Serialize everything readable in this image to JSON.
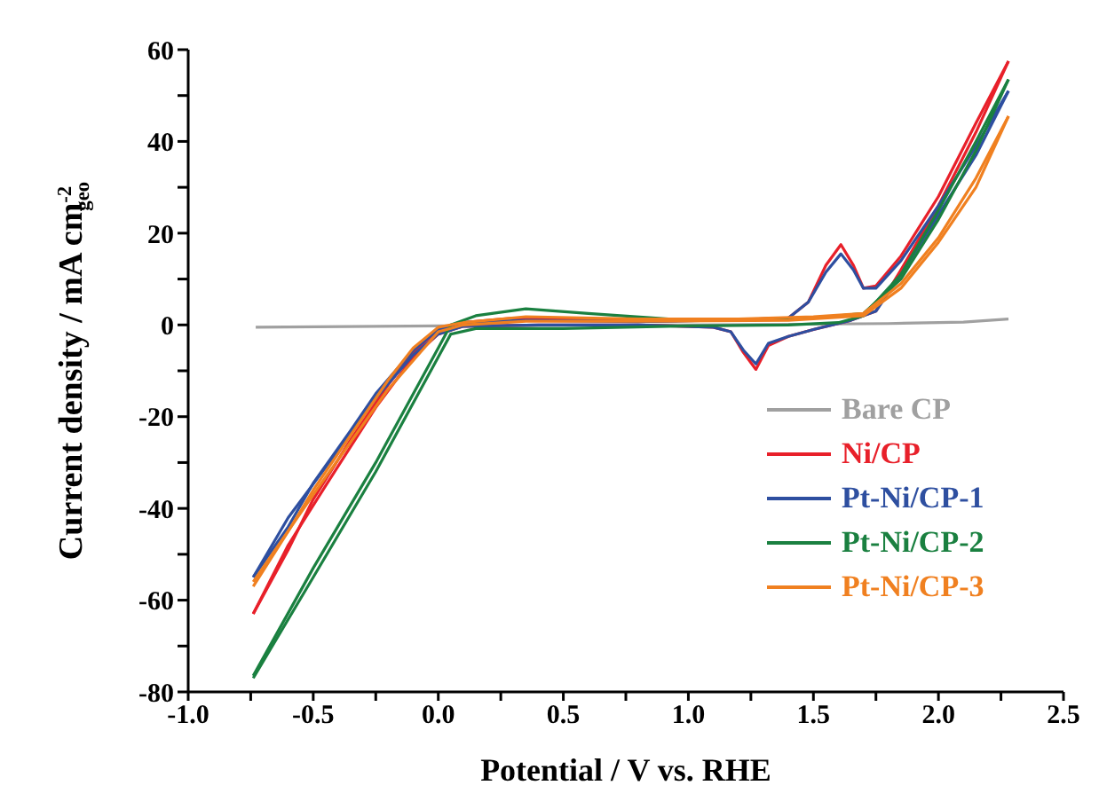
{
  "chart_data": {
    "type": "line",
    "xlabel": "Potential / V vs. RHE",
    "ylabel": "Current density / mA cm$^{-2}$$_{geo}$",
    "xlim": [
      -1.0,
      2.5
    ],
    "xticks": [
      {
        "value": -1.0,
        "label": "-1.0"
      },
      {
        "value": -0.75,
        "label": null
      },
      {
        "value": -0.5,
        "label": "-0.5"
      },
      {
        "value": -0.25,
        "label": null
      },
      {
        "value": 0.0,
        "label": "0.0"
      },
      {
        "value": 0.25,
        "label": null
      },
      {
        "value": 0.5,
        "label": "0.5"
      },
      {
        "value": 0.75,
        "label": null
      },
      {
        "value": 1.0,
        "label": "1.0"
      },
      {
        "value": 1.25,
        "label": null
      },
      {
        "value": 1.5,
        "label": "1.5"
      },
      {
        "value": 1.75,
        "label": null
      },
      {
        "value": 2.0,
        "label": "2.0"
      },
      {
        "value": 2.25,
        "label": null
      },
      {
        "value": 2.5,
        "label": "2.5"
      }
    ],
    "ylim": [
      -80,
      60
    ],
    "yticks": [
      -80,
      {
        "value": -70,
        "label": null
      },
      -60,
      {
        "value": -50,
        "label": null
      },
      -40,
      {
        "value": -30,
        "label": null
      },
      -20,
      {
        "value": -10,
        "label": null
      },
      0,
      {
        "value": 10,
        "label": null
      },
      20,
      {
        "value": 30,
        "label": null
      },
      40,
      {
        "value": 50,
        "label": null
      },
      60
    ],
    "legend": "bottom right",
    "series": [
      {
        "name": "Bare CP",
        "color": "#a0a0a0",
        "x": [
          -0.73,
          0,
          1,
          1.8,
          2.1,
          2.28
        ],
        "values": [
          -0.5,
          -0.2,
          0,
          0.3,
          0.6,
          1.3
        ]
      },
      {
        "name": "Ni/CP",
        "color": "#e8202a",
        "x": [
          -0.74,
          -0.6,
          -0.5,
          -0.35,
          -0.2,
          -0.1,
          0,
          0.1,
          0.3,
          0.5,
          0.8,
          1.1,
          1.4,
          1.48,
          1.55,
          1.61,
          1.66,
          1.7,
          1.75,
          1.85,
          2.0,
          2.15,
          2.28
        ],
        "values": [
          -63,
          -49,
          -38,
          -25,
          -13,
          -6,
          -1,
          0.5,
          1.5,
          1.2,
          0.8,
          1,
          1.5,
          5,
          13,
          17.5,
          13,
          8,
          8.5,
          15,
          28,
          44,
          57.5
        ]
      },
      {
        "color": "#e8202a",
        "x": [
          2.28,
          2.15,
          2.0,
          1.85,
          1.75,
          1.65,
          1.5,
          1.4,
          1.32,
          1.27,
          1.22,
          1.17,
          1.1,
          0.8,
          0.4,
          0.1,
          0,
          -0.1,
          -0.25,
          -0.45,
          -0.6,
          -0.74
        ],
        "values": [
          57.5,
          42,
          26,
          12,
          3,
          1,
          -1,
          -2.5,
          -4.5,
          -9.7,
          -6,
          -1.5,
          -0.5,
          0,
          0,
          -0.3,
          -2,
          -7,
          -18,
          -35,
          -48,
          -63
        ]
      },
      {
        "name": "Pt-Ni/CP-1",
        "color": "#2e4fa0",
        "x": [
          -0.74,
          -0.6,
          -0.5,
          -0.35,
          -0.25,
          -0.1,
          0,
          0.1,
          0.35,
          0.8,
          1.1,
          1.4,
          1.48,
          1.55,
          1.61,
          1.66,
          1.7,
          1.75,
          1.85,
          2.0,
          2.15,
          2.28
        ],
        "values": [
          -55,
          -44,
          -34.5,
          -23,
          -15,
          -5.5,
          -1,
          0.5,
          1,
          0.7,
          1,
          1.5,
          5,
          11.5,
          15.5,
          12,
          8,
          8,
          14,
          26,
          39,
          51
        ]
      },
      {
        "color": "#2e4fa0",
        "x": [
          2.28,
          2.15,
          2.0,
          1.85,
          1.75,
          1.65,
          1.5,
          1.4,
          1.32,
          1.27,
          1.22,
          1.17,
          1.1,
          0.8,
          0.4,
          0.1,
          0,
          -0.1,
          -0.25,
          -0.45,
          -0.6,
          -0.74
        ],
        "values": [
          51,
          37,
          24,
          11,
          3,
          1,
          -1,
          -2.5,
          -4,
          -8.5,
          -5.5,
          -1.5,
          -0.5,
          0,
          0,
          -0.3,
          -2,
          -6.5,
          -16,
          -31,
          -42,
          -55
        ]
      },
      {
        "name": "Pt-Ni/CP-2",
        "color": "#1a8040",
        "x": [
          -0.74,
          -0.5,
          -0.25,
          0,
          0.05,
          0.15,
          0.5,
          1.0,
          1.4,
          1.6,
          1.7,
          1.85,
          2.0,
          2.15,
          2.28
        ],
        "values": [
          -77,
          -55,
          -32,
          -7,
          -2,
          -0.8,
          -0.8,
          -0.2,
          0,
          0.5,
          2,
          11,
          25,
          40,
          53.5
        ]
      },
      {
        "color": "#1a8040",
        "x": [
          2.28,
          2.15,
          2.0,
          1.85,
          1.7,
          1.5,
          1.0,
          0.6,
          0.35,
          0.15,
          0.05,
          0,
          -0.25,
          -0.5,
          -0.74
        ],
        "values": [
          53.5,
          38,
          23,
          10,
          2.5,
          1.5,
          1,
          2.5,
          3.5,
          2,
          0,
          -5,
          -30,
          -53,
          -76.5
        ]
      },
      {
        "name": "Pt-Ni/CP-3",
        "color": "#f08020",
        "x": [
          -0.74,
          -0.6,
          -0.5,
          -0.35,
          -0.2,
          -0.1,
          0,
          0.1,
          0.35,
          0.8,
          1.2,
          1.5,
          1.7,
          1.85,
          2.0,
          2.15,
          2.28
        ],
        "values": [
          -57,
          -45,
          -36,
          -24,
          -12,
          -5,
          -0.5,
          0.5,
          1.8,
          1.3,
          1.3,
          1.8,
          2.5,
          9,
          19,
          32,
          45.5
        ]
      },
      {
        "color": "#f08020",
        "x": [
          2.28,
          2.15,
          2.0,
          1.85,
          1.7,
          1.4,
          0.8,
          0.35,
          0.1,
          0,
          -0.2,
          -0.5,
          -0.74
        ],
        "values": [
          45.5,
          30,
          18,
          8,
          2,
          1,
          0.8,
          0.8,
          0,
          -1.5,
          -14,
          -37,
          -56
        ]
      }
    ]
  }
}
